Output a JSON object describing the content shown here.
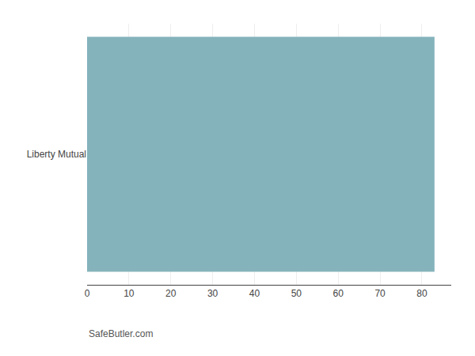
{
  "chart_data": {
    "type": "bar",
    "orientation": "horizontal",
    "categories": [
      "Liberty Mutual"
    ],
    "values": [
      83
    ],
    "color": "#85b3bc",
    "xlim": [
      0,
      87
    ],
    "xticks": [
      0,
      10,
      20,
      30,
      40,
      50,
      60,
      70,
      80
    ],
    "grid": true,
    "annotations": [
      "SafeButler.com"
    ]
  }
}
